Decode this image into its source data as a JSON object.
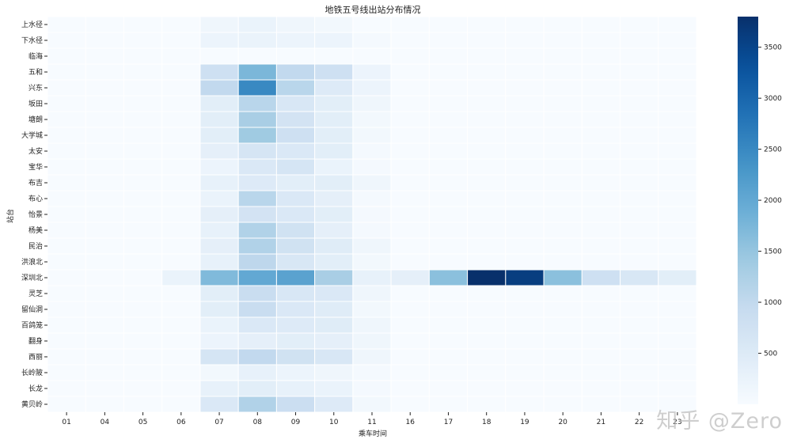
{
  "chart_data": {
    "type": "heatmap",
    "title": "地铁五号线出站分布情况",
    "xlabel": "乘车时间",
    "ylabel": "站台",
    "x_categories": [
      "01",
      "04",
      "05",
      "06",
      "07",
      "08",
      "09",
      "10",
      "11",
      "16",
      "17",
      "18",
      "19",
      "20",
      "21",
      "22",
      "23"
    ],
    "y_categories": [
      "上水径",
      "下水径",
      "临海",
      "五和",
      "兴东",
      "坂田",
      "塘朗",
      "大学城",
      "太安",
      "宝华",
      "布吉",
      "布心",
      "怡景",
      "杨美",
      "民治",
      "洪浪北",
      "深圳北",
      "灵芝",
      "留仙洞",
      "百鸽笼",
      "翻身",
      "西丽",
      "长岭陂",
      "长龙",
      "黄贝岭"
    ],
    "values": [
      [
        0,
        0,
        0,
        0,
        150,
        250,
        150,
        100,
        0,
        0,
        0,
        0,
        0,
        0,
        0,
        0,
        0
      ],
      [
        0,
        0,
        0,
        0,
        200,
        250,
        200,
        200,
        50,
        0,
        0,
        0,
        0,
        0,
        0,
        0,
        0
      ],
      [
        0,
        0,
        0,
        0,
        0,
        0,
        0,
        0,
        0,
        0,
        0,
        0,
        0,
        0,
        0,
        0,
        0
      ],
      [
        0,
        0,
        0,
        0,
        800,
        1750,
        1000,
        800,
        200,
        0,
        0,
        0,
        0,
        0,
        0,
        0,
        0
      ],
      [
        0,
        0,
        0,
        0,
        1000,
        2500,
        1100,
        500,
        200,
        0,
        0,
        0,
        0,
        0,
        0,
        0,
        0
      ],
      [
        0,
        0,
        0,
        0,
        400,
        1100,
        600,
        400,
        150,
        0,
        0,
        0,
        0,
        0,
        0,
        0,
        0
      ],
      [
        0,
        0,
        0,
        0,
        400,
        1300,
        700,
        400,
        100,
        0,
        0,
        0,
        0,
        0,
        0,
        0,
        0
      ],
      [
        0,
        0,
        0,
        0,
        400,
        1400,
        800,
        400,
        100,
        0,
        0,
        0,
        0,
        0,
        0,
        0,
        0
      ],
      [
        0,
        0,
        0,
        0,
        350,
        650,
        550,
        400,
        50,
        0,
        0,
        0,
        0,
        0,
        0,
        0,
        0
      ],
      [
        0,
        0,
        0,
        0,
        200,
        550,
        650,
        250,
        50,
        0,
        0,
        0,
        0,
        0,
        0,
        0,
        0
      ],
      [
        0,
        0,
        0,
        0,
        300,
        500,
        400,
        400,
        150,
        0,
        0,
        0,
        0,
        0,
        0,
        0,
        0
      ],
      [
        0,
        0,
        0,
        0,
        250,
        1100,
        550,
        350,
        50,
        0,
        0,
        0,
        0,
        0,
        0,
        0,
        0
      ],
      [
        0,
        0,
        0,
        0,
        350,
        700,
        550,
        400,
        50,
        0,
        0,
        0,
        0,
        0,
        0,
        0,
        0
      ],
      [
        0,
        0,
        0,
        0,
        300,
        1200,
        750,
        350,
        50,
        0,
        0,
        0,
        0,
        0,
        0,
        0,
        0
      ],
      [
        0,
        0,
        0,
        0,
        350,
        1200,
        750,
        450,
        150,
        0,
        0,
        0,
        0,
        0,
        0,
        0,
        0
      ],
      [
        0,
        0,
        0,
        0,
        300,
        1050,
        600,
        400,
        100,
        0,
        0,
        0,
        0,
        0,
        0,
        0,
        0
      ],
      [
        0,
        0,
        0,
        250,
        1700,
        2000,
        2100,
        1300,
        300,
        350,
        1600,
        3800,
        3600,
        1600,
        800,
        600,
        400
      ],
      [
        0,
        0,
        0,
        0,
        400,
        900,
        600,
        550,
        150,
        0,
        0,
        0,
        0,
        0,
        0,
        0,
        0
      ],
      [
        0,
        0,
        0,
        0,
        400,
        900,
        550,
        450,
        100,
        0,
        0,
        0,
        0,
        0,
        0,
        0,
        0
      ],
      [
        0,
        0,
        0,
        0,
        250,
        550,
        500,
        450,
        150,
        0,
        0,
        0,
        0,
        0,
        0,
        0,
        0
      ],
      [
        0,
        0,
        0,
        0,
        200,
        350,
        400,
        350,
        150,
        0,
        0,
        0,
        0,
        0,
        0,
        0,
        0
      ],
      [
        0,
        0,
        0,
        0,
        650,
        1000,
        750,
        600,
        150,
        0,
        0,
        0,
        0,
        0,
        0,
        0,
        0
      ],
      [
        0,
        0,
        0,
        0,
        100,
        300,
        200,
        150,
        50,
        0,
        0,
        0,
        0,
        0,
        0,
        0,
        0
      ],
      [
        0,
        0,
        0,
        0,
        300,
        400,
        300,
        250,
        50,
        0,
        0,
        0,
        0,
        0,
        0,
        0,
        0
      ],
      [
        0,
        0,
        0,
        0,
        550,
        1200,
        850,
        500,
        100,
        0,
        0,
        0,
        0,
        0,
        0,
        0,
        0
      ]
    ],
    "colorbar": {
      "ticks": [
        500,
        1000,
        1500,
        2000,
        2500,
        3000,
        3500
      ],
      "range": [
        0,
        3800
      ],
      "colormap": "Blues",
      "low_color": "#f7fbff",
      "high_color": "#08306b"
    },
    "grid": "white cell borders",
    "legend": "colorbar at right"
  },
  "watermark": "知乎 @Zero"
}
